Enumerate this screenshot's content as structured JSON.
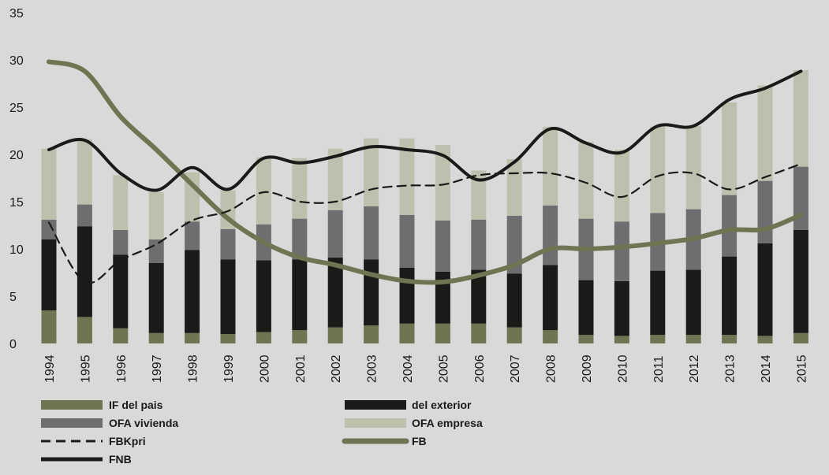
{
  "colors": {
    "background": "#d9d9d9",
    "if_pais": "#6d7553",
    "exterior": "#1c1a18",
    "ofa_vivienda": "#6e6e70",
    "ofa_empresa": "#bcc0ad",
    "fbkpri": "#1c1a18",
    "fb": "#6d7553",
    "fnb": "#1c1a18"
  },
  "chart_data": {
    "type": "bar",
    "title": "",
    "xlabel": "",
    "ylabel": "",
    "ylim": [
      0,
      35
    ],
    "yticks": [
      0,
      5,
      10,
      15,
      20,
      25,
      30,
      35
    ],
    "ytick_labels": [
      "0",
      "5",
      "10",
      "15",
      "20",
      "25",
      "30",
      "35"
    ],
    "grid": false,
    "legend_position": "bottom",
    "categories": [
      "1994",
      "1995",
      "1996",
      "1997",
      "1998",
      "1999",
      "2000",
      "2001",
      "2002",
      "2003",
      "2004",
      "2005",
      "2006",
      "2007",
      "2008",
      "2009",
      "2010",
      "2011",
      "2012",
      "2013",
      "2014",
      "2015"
    ],
    "stacked_series": [
      {
        "name": "IF del pais",
        "color_key": "if_pais",
        "values": [
          3.5,
          2.8,
          1.6,
          1.1,
          1.1,
          1.0,
          1.2,
          1.4,
          1.7,
          1.9,
          2.1,
          2.1,
          2.1,
          1.7,
          1.4,
          0.9,
          0.8,
          0.9,
          0.9,
          0.9,
          0.8,
          1.1
        ]
      },
      {
        "name": "del exterior",
        "color_key": "exterior",
        "values": [
          7.5,
          9.6,
          7.8,
          7.4,
          8.8,
          7.9,
          7.6,
          7.5,
          7.4,
          7.0,
          5.9,
          5.5,
          5.7,
          5.7,
          6.9,
          5.8,
          5.8,
          6.8,
          6.9,
          8.3,
          9.8,
          10.9
        ]
      },
      {
        "name": "OFA vivienda",
        "color_key": "ofa_vivienda",
        "values": [
          2.1,
          2.3,
          2.6,
          2.5,
          3.0,
          3.2,
          3.8,
          4.3,
          5.0,
          5.6,
          5.6,
          5.4,
          5.3,
          6.1,
          6.3,
          6.5,
          6.3,
          6.1,
          6.4,
          6.5,
          6.6,
          6.7
        ]
      },
      {
        "name": "OFA empresa",
        "color_key": "ofa_empresa",
        "values": [
          7.5,
          6.9,
          5.8,
          5.0,
          5.2,
          4.1,
          7.1,
          6.4,
          6.5,
          7.2,
          8.1,
          8.0,
          5.2,
          6.0,
          8.3,
          8.1,
          7.6,
          9.1,
          8.8,
          9.8,
          10.1,
          10.2
        ]
      }
    ],
    "line_series": [
      {
        "name": "FBKpri",
        "color_key": "fbkpri",
        "style": "dashed",
        "values": [
          12.8,
          6.5,
          8.8,
          10.5,
          13.0,
          14.0,
          16.0,
          15.0,
          15.0,
          16.3,
          16.7,
          16.8,
          17.8,
          18.0,
          18.0,
          17.0,
          15.5,
          17.7,
          18.0,
          16.3,
          17.6,
          19.0
        ]
      },
      {
        "name": "FB",
        "color_key": "fb",
        "style": "thick",
        "values": [
          29.8,
          28.8,
          24.0,
          20.5,
          16.8,
          13.2,
          10.7,
          9.1,
          8.3,
          7.3,
          6.6,
          6.5,
          7.2,
          8.3,
          10.0,
          10.0,
          10.2,
          10.6,
          11.1,
          12.0,
          12.1,
          13.6
        ]
      },
      {
        "name": "FNB",
        "color_key": "fnb",
        "style": "solid",
        "values": [
          20.5,
          21.5,
          18.0,
          16.2,
          18.6,
          16.3,
          19.6,
          19.1,
          19.8,
          20.8,
          20.5,
          19.9,
          17.3,
          19.2,
          22.7,
          21.2,
          20.2,
          23.0,
          23.0,
          25.8,
          27.0,
          28.8
        ]
      }
    ]
  },
  "legend": [
    {
      "label": "IF del pais",
      "kind": "patch",
      "color_key": "if_pais"
    },
    {
      "label": "del exterior",
      "kind": "patch",
      "color_key": "exterior"
    },
    {
      "label": "OFA vivienda",
      "kind": "patch",
      "color_key": "ofa_vivienda"
    },
    {
      "label": "OFA empresa",
      "kind": "patch",
      "color_key": "ofa_empresa"
    },
    {
      "label": "FBKpri",
      "kind": "dashed",
      "color_key": "fbkpri"
    },
    {
      "label": "FB",
      "kind": "thick",
      "color_key": "fb"
    },
    {
      "label": "FNB",
      "kind": "solid",
      "color_key": "fnb"
    }
  ]
}
